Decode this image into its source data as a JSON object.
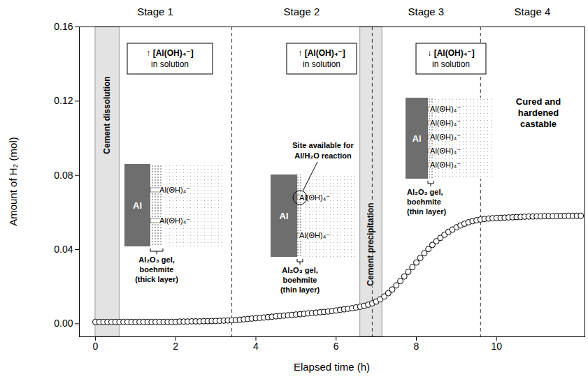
{
  "chart_data": {
    "type": "scatter",
    "x_label": "Elapsed time (h)",
    "y_label": "Amount of H₂ (mol)",
    "marker": "circle",
    "color": "#000000",
    "xlim": [
      -0.4,
      12.2
    ],
    "xticks": [
      0,
      2,
      4,
      6,
      8,
      10
    ],
    "ylim": [
      -0.007,
      0.16
    ],
    "yticks": [
      {
        "value": 0,
        "label": "0.00"
      },
      {
        "value": 0.04,
        "label": "0.04"
      },
      {
        "value": 0.08,
        "label": "0.08"
      },
      {
        "value": 0.12,
        "label": "0.12"
      },
      {
        "value": 0.16,
        "label": "0.16"
      }
    ],
    "x": [
      0,
      0.1,
      0.2,
      0.3,
      0.4,
      0.5,
      0.6,
      0.7,
      0.8,
      0.9,
      1,
      1.1,
      1.2,
      1.3,
      1.4,
      1.5,
      1.6,
      1.7,
      1.8,
      1.9,
      2,
      2.1,
      2.2,
      2.3,
      2.4,
      2.5,
      2.6,
      2.7,
      2.8,
      2.9,
      3,
      3.1,
      3.2,
      3.3,
      3.4,
      3.5,
      3.6,
      3.7,
      3.8,
      3.9,
      4,
      4.1,
      4.2,
      4.3,
      4.4,
      4.5,
      4.6,
      4.7,
      4.8,
      4.9,
      5,
      5.1,
      5.2,
      5.3,
      5.4,
      5.5,
      5.6,
      5.7,
      5.8,
      5.9,
      6,
      6.1,
      6.2,
      6.3,
      6.4,
      6.5,
      6.6,
      6.7,
      6.8,
      6.9,
      7,
      7.1,
      7.2,
      7.3,
      7.4,
      7.5,
      7.6,
      7.7,
      7.8,
      7.9,
      8,
      8.1,
      8.2,
      8.3,
      8.4,
      8.5,
      8.6,
      8.7,
      8.8,
      8.9,
      9,
      9.1,
      9.2,
      9.3,
      9.4,
      9.5,
      9.6,
      9.7,
      9.8,
      9.9,
      10,
      10.1,
      10.2,
      10.3,
      10.4,
      10.5,
      10.6,
      10.7,
      10.8,
      10.9,
      11,
      11.1,
      11.2,
      11.3,
      11.4,
      11.5,
      11.6,
      11.7,
      11.8,
      11.9,
      12,
      12.1
    ],
    "values": [
      0.001,
      0.001,
      0.001,
      0.001,
      0.001,
      0.001,
      0.001,
      0.001,
      0.001,
      0.001,
      0.001,
      0.001,
      0.001,
      0.001,
      0.001,
      0.001,
      0.001,
      0.001,
      0.001,
      0.001,
      0.001,
      0.0012,
      0.0012,
      0.0012,
      0.0013,
      0.0013,
      0.0013,
      0.0014,
      0.0014,
      0.0015,
      0.0015,
      0.0016,
      0.0017,
      0.0018,
      0.0019,
      0.002,
      0.0022,
      0.0024,
      0.0026,
      0.0028,
      0.003,
      0.0032,
      0.0034,
      0.0036,
      0.0038,
      0.004,
      0.0042,
      0.0044,
      0.0046,
      0.0048,
      0.005,
      0.0052,
      0.0054,
      0.0056,
      0.0058,
      0.006,
      0.0062,
      0.0064,
      0.0066,
      0.0069,
      0.0072,
      0.0075,
      0.0078,
      0.0081,
      0.0084,
      0.0088,
      0.0092,
      0.0097,
      0.0103,
      0.011,
      0.012,
      0.0132,
      0.0147,
      0.0165,
      0.0185,
      0.0207,
      0.023,
      0.0255,
      0.028,
      0.0305,
      0.033,
      0.0355,
      0.038,
      0.0403,
      0.0425,
      0.0445,
      0.0463,
      0.048,
      0.0495,
      0.0508,
      0.052,
      0.053,
      0.0539,
      0.0547,
      0.0553,
      0.0558,
      0.0562,
      0.0565,
      0.0567,
      0.0569,
      0.057,
      0.0571,
      0.0572,
      0.0573,
      0.0574,
      0.0575,
      0.0576,
      0.0577,
      0.0578,
      0.0578,
      0.0579,
      0.0579,
      0.058,
      0.058,
      0.058,
      0.0581,
      0.0581,
      0.0581,
      0.0582,
      0.0582,
      0.0582,
      0.0582
    ],
    "stages": [
      "Stage 1",
      "Stage 2",
      "Stage 3",
      "Stage 4"
    ],
    "stage_boundaries": [
      3.4,
      6.9,
      9.6
    ],
    "bands": [
      {
        "label": "Cement dissolution",
        "x1": 0,
        "x2": 0.6
      },
      {
        "label": "Cement precipitation",
        "x1": 6.6,
        "x2": 7.15
      }
    ],
    "annotations": [
      {
        "box": [
          "↑ [Al(OH)₄⁻]",
          "in solution"
        ],
        "metal": "Al",
        "ion": "Al(OH)₄⁻",
        "layer": [
          "Al₂O₃ gel,",
          "boehmite",
          "(thick layer)"
        ]
      },
      {
        "box": [
          "↑ [Al(OH)₄⁻]",
          "in solution"
        ],
        "metal": "Al",
        "ion": "Al(OH)₄⁻",
        "layer": [
          "Al₂O₃ gel,",
          "boehmite",
          "(thin layer)"
        ],
        "site": [
          "Site available for",
          "Al/H₂O reaction"
        ]
      },
      {
        "box": [
          "↓ [Al(OH)₄⁻]",
          "in solution"
        ],
        "metal": "Al",
        "ion": "Al(OH)₄⁻",
        "layer": [
          "Al₂O₃ gel,",
          "boehmite",
          "(thin layer)"
        ]
      },
      {
        "text": [
          "Cured and",
          "hardened",
          "castable"
        ]
      }
    ]
  }
}
